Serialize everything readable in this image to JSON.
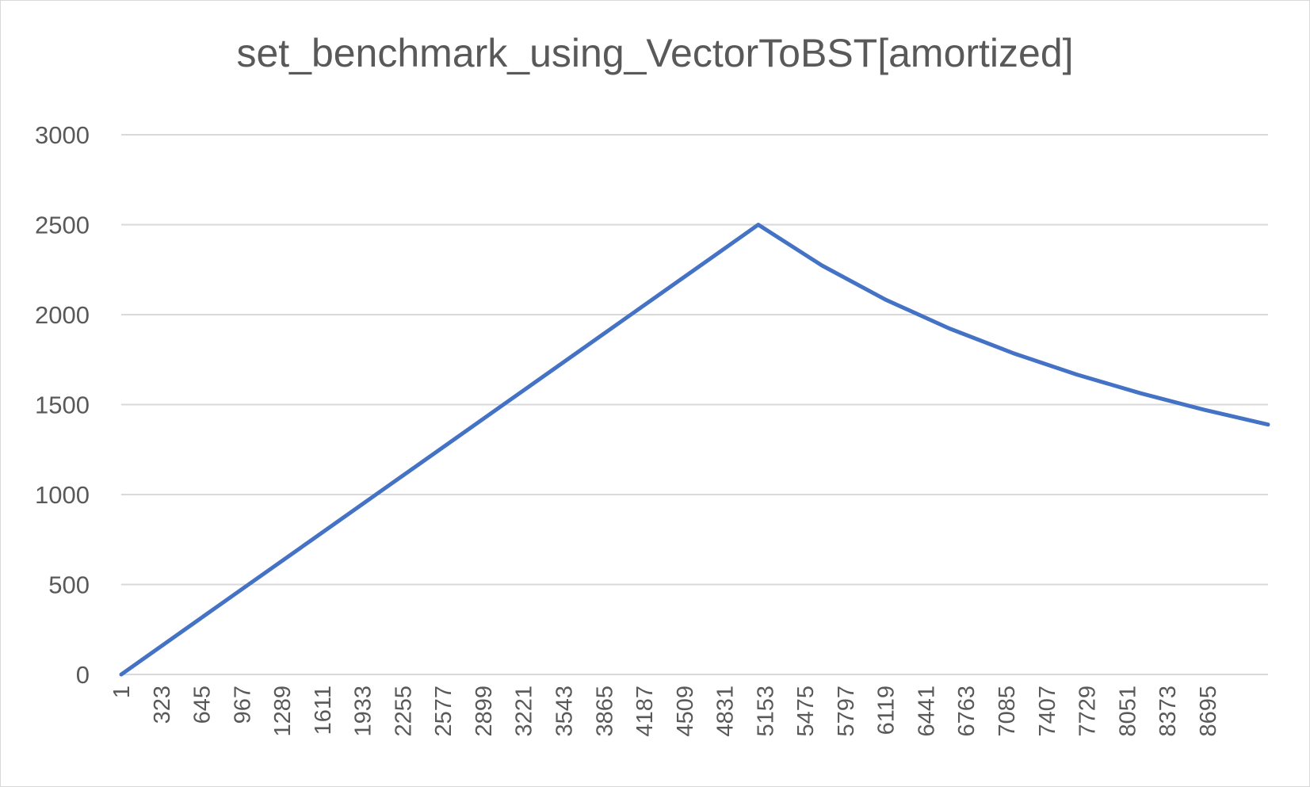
{
  "chart_data": {
    "type": "line",
    "title": "set_benchmark_using_VectorToBST[amortized]",
    "xlabel": "",
    "ylabel": "",
    "ylim": [
      0,
      3000
    ],
    "yticks": [
      "0",
      "500",
      "1000",
      "1500",
      "2000",
      "2500",
      "3000"
    ],
    "xtick_labels": [
      "1",
      "323",
      "645",
      "967",
      "1289",
      "1611",
      "1933",
      "2255",
      "2577",
      "2899",
      "3221",
      "3543",
      "3865",
      "4187",
      "4509",
      "4831",
      "5153",
      "5475",
      "5797",
      "6119",
      "6441",
      "6763",
      "7085",
      "7407",
      "7729",
      "8051",
      "8373",
      "8695"
    ],
    "xlim": [
      1,
      9000
    ],
    "grid": true,
    "legend": "none",
    "series_color": "#4472c4",
    "series": [
      {
        "x": [
          1,
          500,
          1000,
          1500,
          2000,
          2500,
          3000,
          3500,
          4000,
          4500,
          5000,
          5500,
          6000,
          6500,
          7000,
          7500,
          8000,
          8500,
          9000
        ],
        "values": [
          0,
          250,
          500,
          750,
          1000,
          1250,
          1500,
          1750,
          2000,
          2250,
          2500,
          2273,
          2083,
          1923,
          1786,
          1667,
          1563,
          1471,
          1389
        ]
      }
    ]
  }
}
